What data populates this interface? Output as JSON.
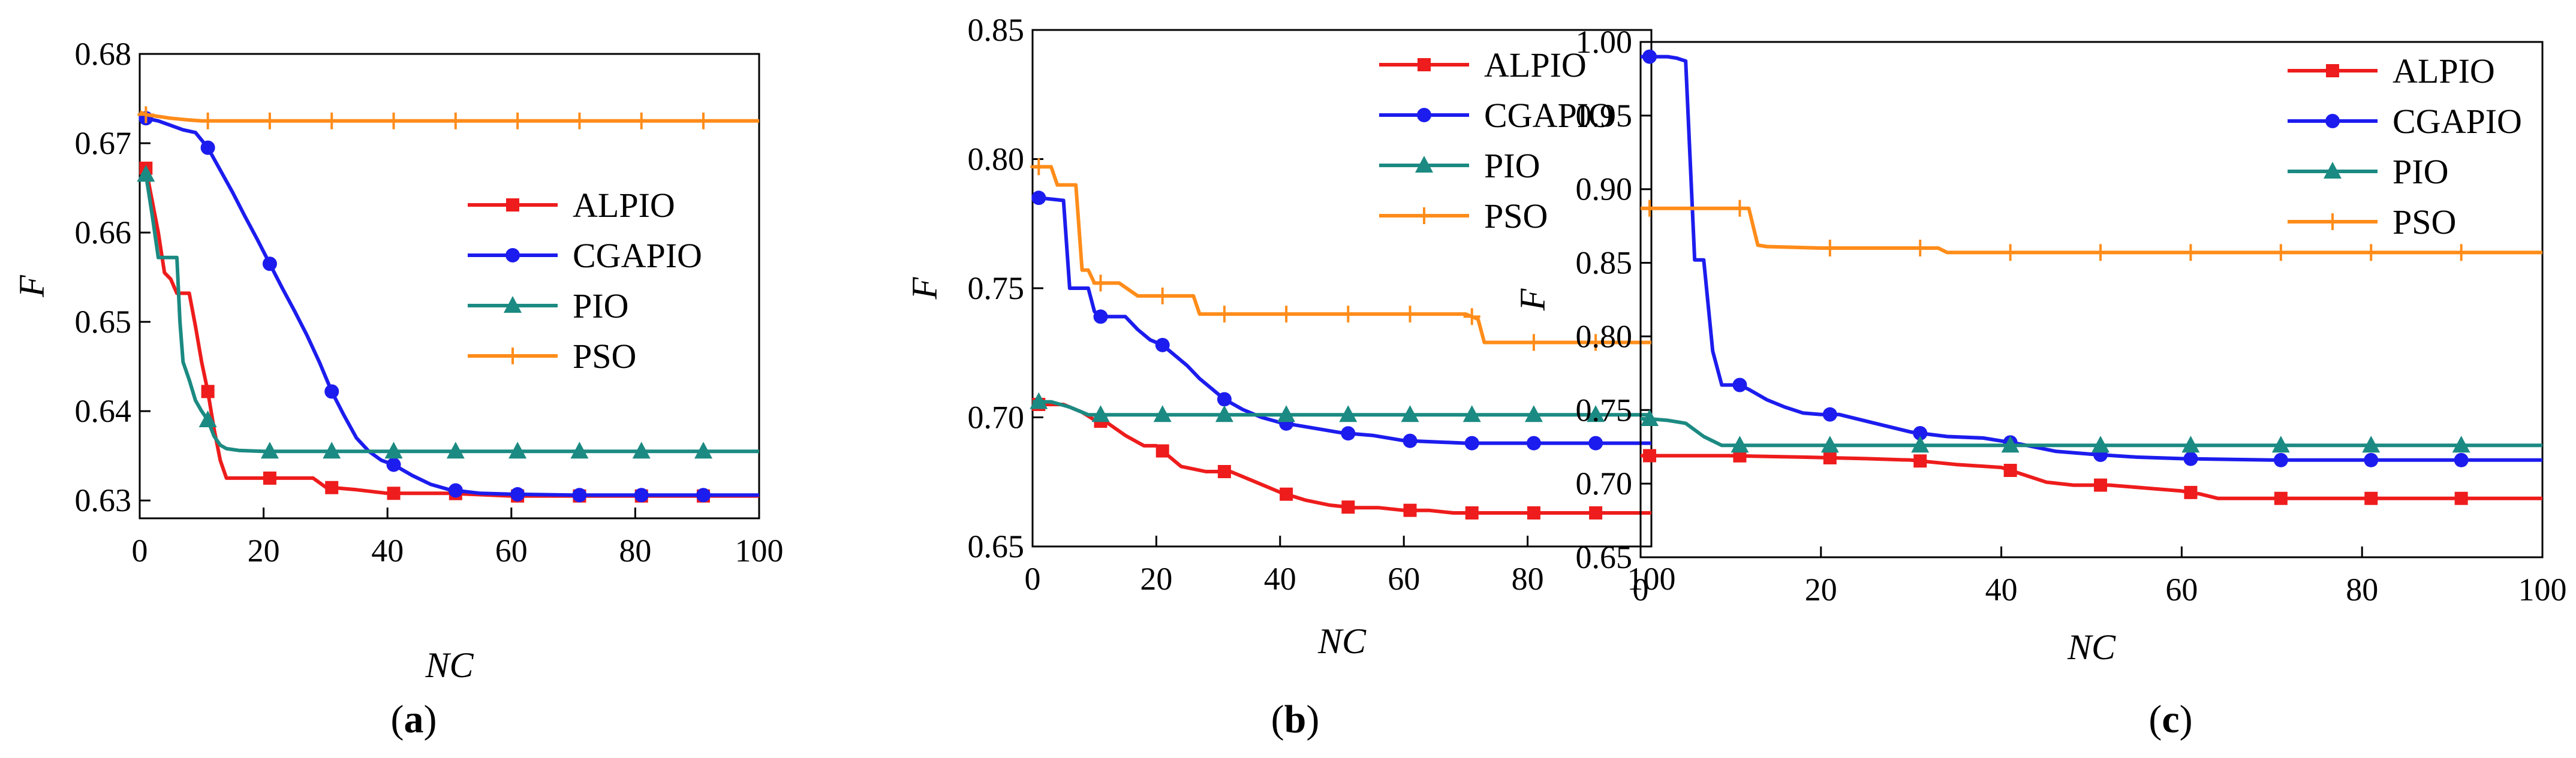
{
  "figure": {
    "captions": [
      "(a)",
      "(b)",
      "(c)"
    ]
  },
  "colors": {
    "ALPIO": "#ee1c1c",
    "CGAPIO": "#1c1cee",
    "PIO": "#1b8a82",
    "PSO": "#ff8c1a"
  },
  "chart_data": [
    {
      "type": "line",
      "caption": "(a)",
      "caption_letter": "a",
      "xlabel": "NC",
      "ylabel": "F",
      "xlim": [
        0,
        100
      ],
      "ylim": [
        0.628,
        0.68
      ],
      "xticks": [
        0,
        20,
        40,
        60,
        80,
        100
      ],
      "xtick_labels": [
        "0",
        "20",
        "40",
        "60",
        "80",
        "100"
      ],
      "yticks": [
        0.63,
        0.64,
        0.65,
        0.66,
        0.67,
        0.68
      ],
      "ytick_labels": [
        "0.63",
        "0.64",
        "0.65",
        "0.66",
        "0.67",
        "0.68"
      ],
      "legend": [
        "ALPIO",
        "CGAPIO",
        "PIO",
        "PSO"
      ],
      "legend_position": "center-right",
      "series": [
        {
          "name": "ALPIO",
          "marker": "square",
          "markers_x": [
            1,
            11,
            21,
            31,
            41,
            51,
            61,
            71,
            81,
            91
          ],
          "x": [
            1,
            3,
            4,
            5,
            6,
            7,
            8,
            9,
            10,
            11,
            12,
            13,
            14,
            20,
            28,
            30,
            35,
            40,
            50,
            60,
            70,
            80,
            90,
            100
          ],
          "y": [
            0.6672,
            0.66,
            0.6555,
            0.6548,
            0.6532,
            0.6532,
            0.6532,
            0.6495,
            0.6455,
            0.6422,
            0.638,
            0.6345,
            0.6325,
            0.6325,
            0.6325,
            0.6315,
            0.6312,
            0.6308,
            0.6308,
            0.6305,
            0.6305,
            0.6305,
            0.6305,
            0.6305
          ]
        },
        {
          "name": "CGAPIO",
          "marker": "circle",
          "markers_x": [
            1,
            11,
            21,
            31,
            41,
            51,
            61,
            71,
            81,
            91
          ],
          "x": [
            1,
            3,
            5,
            7,
            9,
            11,
            13,
            15,
            17,
            19,
            21,
            23,
            25,
            27,
            29,
            31,
            33,
            35,
            37,
            39,
            41,
            44,
            47,
            50,
            55,
            60,
            70,
            80,
            90,
            100
          ],
          "y": [
            0.6728,
            0.6725,
            0.672,
            0.6715,
            0.6712,
            0.6695,
            0.667,
            0.6645,
            0.6618,
            0.6592,
            0.6565,
            0.6538,
            0.6512,
            0.6485,
            0.6455,
            0.6422,
            0.6395,
            0.637,
            0.6355,
            0.6345,
            0.634,
            0.6328,
            0.6318,
            0.6312,
            0.6308,
            0.6307,
            0.6306,
            0.6306,
            0.6306,
            0.6306
          ]
        },
        {
          "name": "PIO",
          "marker": "triangle",
          "markers_x": [
            1,
            11,
            21,
            31,
            41,
            51,
            61,
            71,
            81,
            91
          ],
          "x": [
            1,
            2,
            3,
            4,
            6,
            6.5,
            7,
            8,
            9,
            10,
            11,
            12,
            13,
            14,
            16,
            20,
            30,
            40,
            50,
            60,
            70,
            80,
            90,
            100
          ],
          "y": [
            0.6665,
            0.662,
            0.6572,
            0.6572,
            0.6572,
            0.65,
            0.6455,
            0.6435,
            0.6412,
            0.64,
            0.639,
            0.6372,
            0.6362,
            0.6358,
            0.6356,
            0.6355,
            0.6355,
            0.6355,
            0.6355,
            0.6355,
            0.6355,
            0.6355,
            0.6355,
            0.6355
          ]
        },
        {
          "name": "PSO",
          "marker": "plus",
          "markers_x": [
            1,
            11,
            21,
            31,
            41,
            51,
            61,
            71,
            81,
            91
          ],
          "x": [
            0,
            1,
            3,
            5,
            8,
            10,
            20,
            40,
            60,
            80,
            100
          ],
          "y": [
            0.6735,
            0.6732,
            0.673,
            0.6728,
            0.6726,
            0.6725,
            0.6725,
            0.6725,
            0.6725,
            0.6725,
            0.6725
          ]
        }
      ]
    },
    {
      "type": "line",
      "caption": "(b)",
      "caption_letter": "b",
      "xlabel": "NC",
      "ylabel": "F",
      "xlim": [
        0,
        100
      ],
      "ylim": [
        0.65,
        0.85
      ],
      "xticks": [
        0,
        20,
        40,
        60,
        80,
        100
      ],
      "xtick_labels": [
        "0",
        "20",
        "40",
        "60",
        "80",
        "100"
      ],
      "yticks": [
        0.65,
        0.7,
        0.75,
        0.8,
        0.85
      ],
      "ytick_labels": [
        "0.65",
        "0.70",
        "0.75",
        "0.80",
        "0.85"
      ],
      "legend": [
        "ALPIO",
        "CGAPIO",
        "PIO",
        "PSO"
      ],
      "legend_position": "top-right",
      "series": [
        {
          "name": "ALPIO",
          "marker": "square",
          "markers_x": [
            1,
            11,
            21,
            31,
            41,
            51,
            61,
            71,
            81,
            91
          ],
          "x": [
            0,
            5,
            8,
            10,
            12,
            15,
            18,
            20,
            24,
            28,
            32,
            36,
            40,
            44,
            48,
            52,
            56,
            60,
            64,
            68,
            72,
            80,
            90,
            100
          ],
          "y": [
            0.705,
            0.705,
            0.702,
            0.699,
            0.698,
            0.693,
            0.689,
            0.689,
            0.681,
            0.679,
            0.679,
            0.675,
            0.671,
            0.668,
            0.666,
            0.665,
            0.665,
            0.664,
            0.664,
            0.663,
            0.663,
            0.663,
            0.663,
            0.663
          ]
        },
        {
          "name": "CGAPIO",
          "marker": "circle",
          "markers_x": [
            1,
            11,
            21,
            31,
            41,
            51,
            61,
            71,
            81,
            91
          ],
          "x": [
            0,
            1,
            5,
            6,
            9,
            10,
            11,
            15,
            17,
            19,
            21,
            23,
            25,
            27,
            29,
            31,
            34,
            37,
            40,
            45,
            50,
            55,
            60,
            70,
            80,
            90,
            100
          ],
          "y": [
            0.785,
            0.785,
            0.784,
            0.75,
            0.75,
            0.741,
            0.739,
            0.739,
            0.734,
            0.73,
            0.728,
            0.724,
            0.72,
            0.715,
            0.711,
            0.707,
            0.703,
            0.7,
            0.698,
            0.696,
            0.694,
            0.693,
            0.691,
            0.69,
            0.69,
            0.69,
            0.69
          ]
        },
        {
          "name": "PIO",
          "marker": "triangle",
          "markers_x": [
            1,
            11,
            21,
            31,
            41,
            51,
            61,
            71,
            81,
            91
          ],
          "x": [
            0,
            1,
            3,
            6,
            9,
            11,
            20,
            40,
            60,
            80,
            100
          ],
          "y": [
            0.706,
            0.706,
            0.706,
            0.704,
            0.701,
            0.701,
            0.701,
            0.701,
            0.701,
            0.701,
            0.701
          ]
        },
        {
          "name": "PSO",
          "marker": "plus",
          "markers_x": [
            1,
            11,
            21,
            31,
            41,
            51,
            61,
            71,
            81,
            91
          ],
          "x": [
            0,
            1,
            3,
            4,
            7,
            8,
            9,
            10,
            11,
            14,
            17,
            20,
            26,
            27,
            30,
            50,
            70,
            72,
            73,
            80,
            90,
            100
          ],
          "y": [
            0.797,
            0.797,
            0.797,
            0.79,
            0.79,
            0.757,
            0.757,
            0.752,
            0.752,
            0.752,
            0.747,
            0.747,
            0.747,
            0.74,
            0.74,
            0.74,
            0.74,
            0.738,
            0.729,
            0.729,
            0.729,
            0.729
          ]
        }
      ]
    },
    {
      "type": "line",
      "caption": "(c)",
      "caption_letter": "c",
      "xlabel": "NC",
      "ylabel": "F",
      "xlim": [
        0,
        100
      ],
      "ylim": [
        0.65,
        1.0
      ],
      "xticks": [
        0,
        20,
        40,
        60,
        80,
        100
      ],
      "xtick_labels": [
        "0",
        "20",
        "40",
        "60",
        "80",
        "100"
      ],
      "yticks": [
        0.65,
        0.7,
        0.75,
        0.8,
        0.85,
        0.9,
        0.95,
        1.0
      ],
      "ytick_labels": [
        "0.65",
        "0.70",
        "0.75",
        "0.80",
        "0.85",
        "0.90",
        "0.95",
        "1.00"
      ],
      "legend": [
        "ALPIO",
        "CGAPIO",
        "PIO",
        "PSO"
      ],
      "legend_position": "top-right",
      "series": [
        {
          "name": "ALPIO",
          "marker": "square",
          "markers_x": [
            1,
            11,
            21,
            31,
            41,
            51,
            61,
            71,
            81,
            91
          ],
          "x": [
            0,
            10,
            18,
            25,
            30,
            35,
            40,
            42,
            45,
            48,
            52,
            56,
            60,
            62,
            64,
            68,
            72,
            80,
            90,
            100
          ],
          "y": [
            0.719,
            0.719,
            0.718,
            0.717,
            0.716,
            0.713,
            0.711,
            0.707,
            0.701,
            0.699,
            0.699,
            0.697,
            0.695,
            0.693,
            0.69,
            0.69,
            0.69,
            0.69,
            0.69,
            0.69
          ]
        },
        {
          "name": "CGAPIO",
          "marker": "circle",
          "markers_x": [
            1,
            11,
            21,
            31,
            41,
            51,
            61,
            71,
            81,
            91
          ],
          "x": [
            0,
            1,
            3,
            4,
            5,
            6,
            7,
            8,
            9,
            10,
            11,
            12,
            14,
            16,
            18,
            20,
            22,
            26,
            30,
            34,
            38,
            42,
            46,
            50,
            55,
            60,
            70,
            80,
            90,
            100
          ],
          "y": [
            0.99,
            0.99,
            0.99,
            0.989,
            0.987,
            0.852,
            0.852,
            0.79,
            0.767,
            0.767,
            0.767,
            0.764,
            0.757,
            0.752,
            0.748,
            0.747,
            0.747,
            0.741,
            0.735,
            0.732,
            0.731,
            0.727,
            0.722,
            0.72,
            0.718,
            0.717,
            0.716,
            0.716,
            0.716,
            0.716
          ]
        },
        {
          "name": "PIO",
          "marker": "triangle",
          "markers_x": [
            1,
            11,
            21,
            31,
            41,
            51,
            61,
            71,
            81,
            91
          ],
          "x": [
            0,
            1,
            3,
            5,
            7,
            9,
            11,
            20,
            40,
            60,
            80,
            100
          ],
          "y": [
            0.744,
            0.744,
            0.743,
            0.741,
            0.732,
            0.726,
            0.726,
            0.726,
            0.726,
            0.726,
            0.726,
            0.726
          ]
        },
        {
          "name": "PSO",
          "marker": "plus",
          "markers_x": [
            1,
            11,
            21,
            31,
            41,
            51,
            61,
            71,
            81,
            91
          ],
          "x": [
            0,
            1,
            5,
            10,
            12,
            13,
            14,
            20,
            30,
            33,
            34,
            40,
            60,
            80,
            100
          ],
          "y": [
            0.887,
            0.887,
            0.887,
            0.887,
            0.887,
            0.862,
            0.861,
            0.86,
            0.86,
            0.86,
            0.857,
            0.857,
            0.857,
            0.857,
            0.857
          ]
        }
      ]
    }
  ]
}
